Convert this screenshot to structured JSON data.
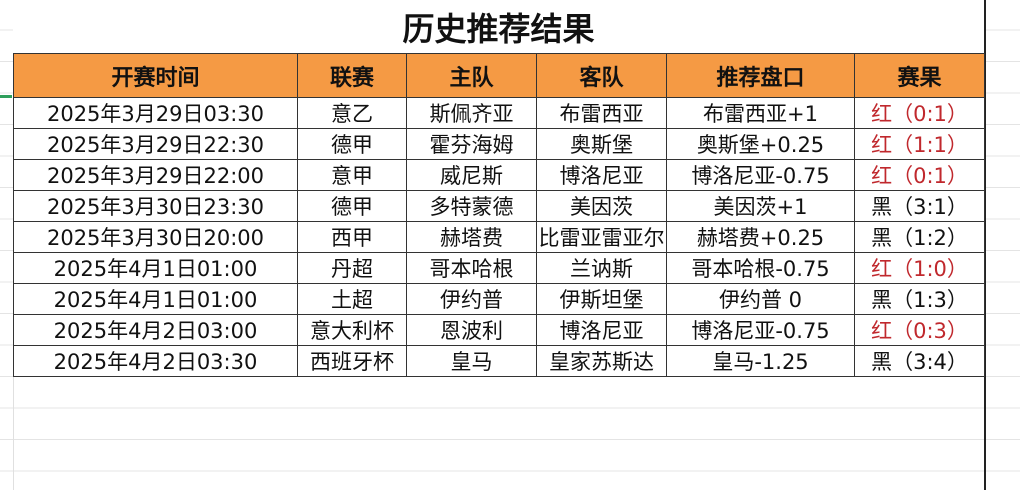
{
  "title": "历史推荐结果",
  "colors": {
    "header_bg": "#f59a44",
    "win": "#c0282d",
    "loss": "#111111"
  },
  "columns": [
    "开赛时间",
    "联赛",
    "主队",
    "客队",
    "推荐盘口",
    "赛果"
  ],
  "rows": [
    {
      "time": "2025年3月29日03:30",
      "league": "意乙",
      "home": "斯佩齐亚",
      "away": "布雷西亚",
      "pick": "布雷西亚+1",
      "result": "红（0:1）",
      "status": "red"
    },
    {
      "time": "2025年3月29日22:30",
      "league": "德甲",
      "home": "霍芬海姆",
      "away": "奥斯堡",
      "pick": "奥斯堡+0.25",
      "result": "红（1:1）",
      "status": "red"
    },
    {
      "time": "2025年3月29日22:00",
      "league": "意甲",
      "home": "威尼斯",
      "away": "博洛尼亚",
      "pick": "博洛尼亚-0.75",
      "result": "红（0:1）",
      "status": "red"
    },
    {
      "time": "2025年3月30日23:30",
      "league": "德甲",
      "home": "多特蒙德",
      "away": "美因茨",
      "pick": "美因茨+1",
      "result": "黑（3:1）",
      "status": "black"
    },
    {
      "time": "2025年3月30日20:00",
      "league": "西甲",
      "home": "赫塔费",
      "away": "比雷亚雷亚尔",
      "pick": "赫塔费+0.25",
      "result": "黑（1:2）",
      "status": "black"
    },
    {
      "time": "2025年4月1日01:00",
      "league": "丹超",
      "home": "哥本哈根",
      "away": "兰讷斯",
      "pick": "哥本哈根-0.75",
      "result": "红（1:0）",
      "status": "red"
    },
    {
      "time": "2025年4月1日01:00",
      "league": "土超",
      "home": "伊约普",
      "away": "伊斯坦堡",
      "pick": "伊约普 0",
      "result": "黑（1:3）",
      "status": "black"
    },
    {
      "time": "2025年4月2日03:00",
      "league": "意大利杯",
      "home": "恩波利",
      "away": "博洛尼亚",
      "pick": "博洛尼亚-0.75",
      "result": "红（0:3）",
      "status": "red"
    },
    {
      "time": "2025年4月2日03:30",
      "league": "西班牙杯",
      "home": "皇马",
      "away": "皇家苏斯达",
      "pick": "皇马-1.25",
      "result": "黑（3:4）",
      "status": "black"
    }
  ]
}
